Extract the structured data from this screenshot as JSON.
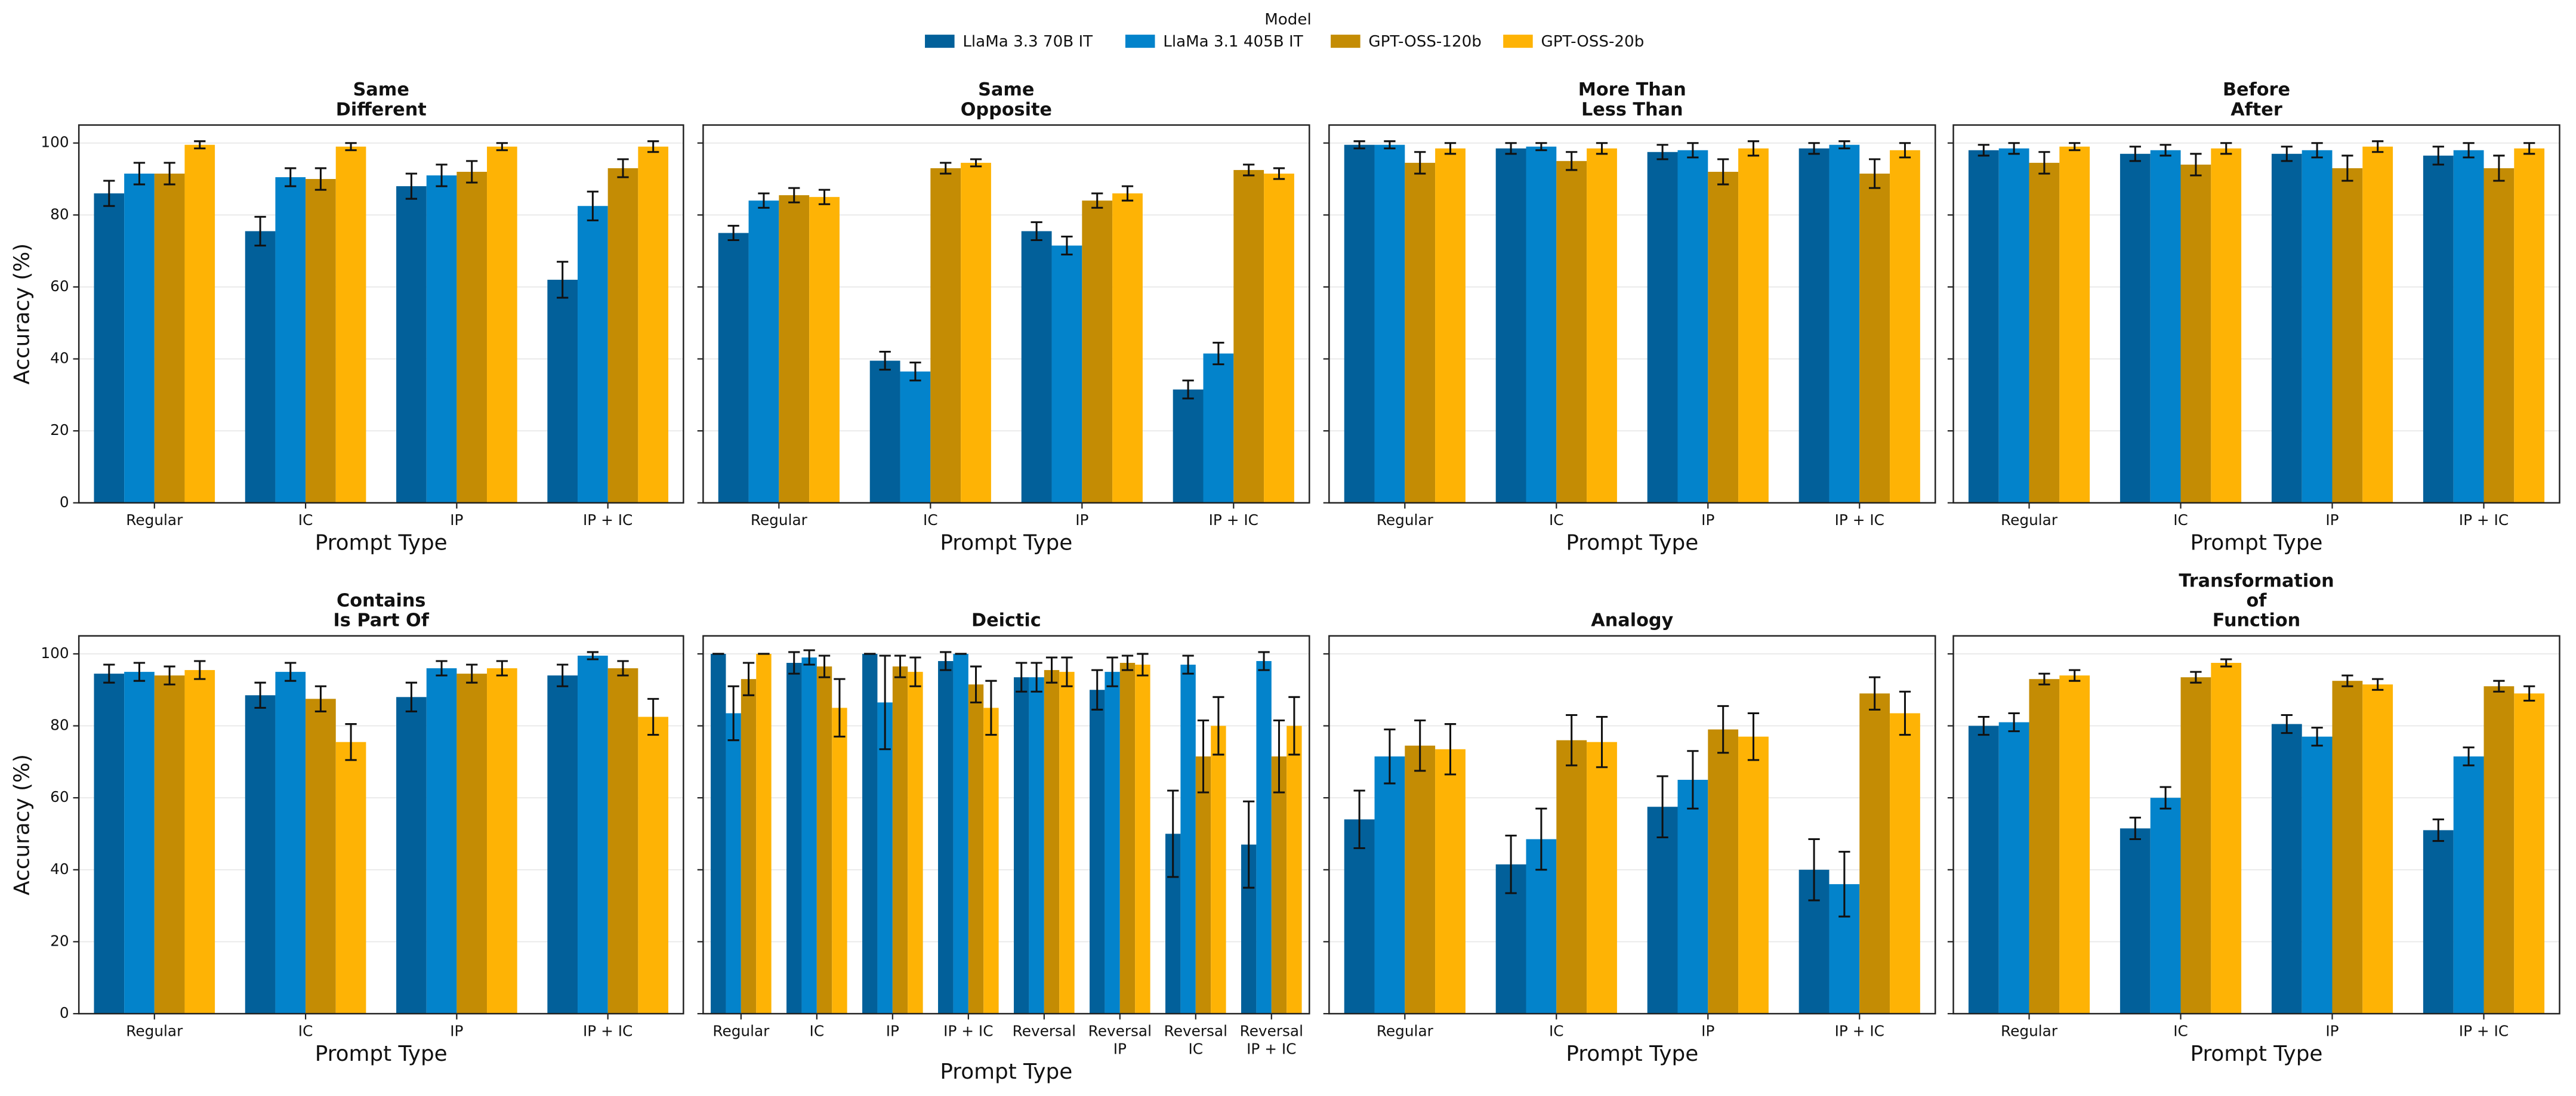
{
  "legend": {
    "title": "Model"
  },
  "chart_data": [
    {
      "type": "bar",
      "title": [
        "Same",
        "Different"
      ],
      "xlabel": "Prompt Type",
      "ylabel": "Accuracy (%)",
      "categories": [
        "Regular",
        "IC",
        "IP",
        "IP + IC"
      ],
      "ylim": [
        0,
        105
      ],
      "yticks": [
        0,
        20,
        40,
        60,
        80,
        100
      ],
      "grid": true,
      "show_ytick_labels": true,
      "series": [
        {
          "name": "LlaMa 3.3 70B IT",
          "color": "#02609a",
          "values": [
            86,
            75.5,
            88,
            62
          ],
          "errors": [
            3.5,
            4,
            3.5,
            5
          ]
        },
        {
          "name": "LlaMa 3.1 405B IT",
          "color": "#0383cb",
          "values": [
            91.5,
            90.5,
            91,
            82.5
          ],
          "errors": [
            3,
            2.5,
            3,
            4
          ]
        },
        {
          "name": "GPT-OSS-120b",
          "color": "#c48c04",
          "values": [
            91.5,
            90,
            92,
            93
          ],
          "errors": [
            3,
            3,
            3,
            2.5
          ]
        },
        {
          "name": "GPT-OSS-20b",
          "color": "#feb305",
          "values": [
            99.5,
            99,
            99,
            99
          ],
          "errors": [
            1,
            1,
            1,
            1.5
          ]
        }
      ]
    },
    {
      "type": "bar",
      "title": [
        "Same",
        "Opposite"
      ],
      "xlabel": "Prompt Type",
      "categories": [
        "Regular",
        "IC",
        "IP",
        "IP + IC"
      ],
      "ylim": [
        0,
        105
      ],
      "yticks": [
        0,
        20,
        40,
        60,
        80,
        100
      ],
      "grid": true,
      "show_ytick_labels": false,
      "series": [
        {
          "name": "LlaMa 3.3 70B IT",
          "color": "#02609a",
          "values": [
            75,
            39.5,
            75.5,
            31.5
          ],
          "errors": [
            2,
            2.5,
            2.5,
            2.5
          ]
        },
        {
          "name": "LlaMa 3.1 405B IT",
          "color": "#0383cb",
          "values": [
            84,
            36.5,
            71.5,
            41.5
          ],
          "errors": [
            2,
            2.5,
            2.5,
            3
          ]
        },
        {
          "name": "GPT-OSS-120b",
          "color": "#c48c04",
          "values": [
            85.5,
            93,
            84,
            92.5
          ],
          "errors": [
            2,
            1.5,
            2,
            1.5
          ]
        },
        {
          "name": "GPT-OSS-20b",
          "color": "#feb305",
          "values": [
            85,
            94.5,
            86,
            91.5
          ],
          "errors": [
            2,
            1,
            2,
            1.5
          ]
        }
      ]
    },
    {
      "type": "bar",
      "title": [
        "More Than",
        "Less Than"
      ],
      "xlabel": "Prompt Type",
      "categories": [
        "Regular",
        "IC",
        "IP",
        "IP + IC"
      ],
      "ylim": [
        0,
        105
      ],
      "yticks": [
        0,
        20,
        40,
        60,
        80,
        100
      ],
      "grid": true,
      "show_ytick_labels": false,
      "series": [
        {
          "name": "LlaMa 3.3 70B IT",
          "color": "#02609a",
          "values": [
            99.5,
            98.5,
            97.5,
            98.5
          ],
          "errors": [
            1,
            1.5,
            2,
            1.5
          ]
        },
        {
          "name": "LlaMa 3.1 405B IT",
          "color": "#0383cb",
          "values": [
            99.5,
            99,
            98,
            99.5
          ],
          "errors": [
            1,
            1,
            2,
            1
          ]
        },
        {
          "name": "GPT-OSS-120b",
          "color": "#c48c04",
          "values": [
            94.5,
            95,
            92,
            91.5
          ],
          "errors": [
            3,
            2.5,
            3.5,
            4
          ]
        },
        {
          "name": "GPT-OSS-20b",
          "color": "#feb305",
          "values": [
            98.5,
            98.5,
            98.5,
            98
          ],
          "errors": [
            1.5,
            1.5,
            2,
            2
          ]
        }
      ]
    },
    {
      "type": "bar",
      "title": [
        "Before",
        "After"
      ],
      "xlabel": "Prompt Type",
      "categories": [
        "Regular",
        "IC",
        "IP",
        "IP + IC"
      ],
      "ylim": [
        0,
        105
      ],
      "yticks": [
        0,
        20,
        40,
        60,
        80,
        100
      ],
      "grid": true,
      "show_ytick_labels": false,
      "series": [
        {
          "name": "LlaMa 3.3 70B IT",
          "color": "#02609a",
          "values": [
            98,
            97,
            97,
            96.5
          ],
          "errors": [
            1.5,
            2,
            2,
            2.5
          ]
        },
        {
          "name": "LlaMa 3.1 405B IT",
          "color": "#0383cb",
          "values": [
            98.5,
            98,
            98,
            98
          ],
          "errors": [
            1.5,
            1.5,
            2,
            2
          ]
        },
        {
          "name": "GPT-OSS-120b",
          "color": "#c48c04",
          "values": [
            94.5,
            94,
            93,
            93
          ],
          "errors": [
            3,
            3,
            3.5,
            3.5
          ]
        },
        {
          "name": "GPT-OSS-20b",
          "color": "#feb305",
          "values": [
            99,
            98.5,
            99,
            98.5
          ],
          "errors": [
            1,
            1.5,
            1.5,
            1.5
          ]
        }
      ]
    },
    {
      "type": "bar",
      "title": [
        "Contains",
        "Is Part Of"
      ],
      "xlabel": "Prompt Type",
      "ylabel": "Accuracy (%)",
      "categories": [
        "Regular",
        "IC",
        "IP",
        "IP + IC"
      ],
      "ylim": [
        0,
        105
      ],
      "yticks": [
        0,
        20,
        40,
        60,
        80,
        100
      ],
      "grid": true,
      "show_ytick_labels": true,
      "series": [
        {
          "name": "LlaMa 3.3 70B IT",
          "color": "#02609a",
          "values": [
            94.5,
            88.5,
            88,
            94
          ],
          "errors": [
            2.5,
            3.5,
            4,
            3
          ]
        },
        {
          "name": "LlaMa 3.1 405B IT",
          "color": "#0383cb",
          "values": [
            95,
            95,
            96,
            99.5
          ],
          "errors": [
            2.5,
            2.5,
            2,
            1
          ]
        },
        {
          "name": "GPT-OSS-120b",
          "color": "#c48c04",
          "values": [
            94,
            87.5,
            94.5,
            96
          ],
          "errors": [
            2.5,
            3.5,
            2.5,
            2
          ]
        },
        {
          "name": "GPT-OSS-20b",
          "color": "#feb305",
          "values": [
            95.5,
            75.5,
            96,
            82.5
          ],
          "errors": [
            2.5,
            5,
            2,
            5
          ]
        }
      ]
    },
    {
      "type": "bar",
      "title": [
        "Deictic"
      ],
      "xlabel": "Prompt Type",
      "categories": [
        [
          "Regular"
        ],
        [
          "IC"
        ],
        [
          "IP"
        ],
        [
          "IP + IC"
        ],
        [
          "Reversal"
        ],
        [
          "Reversal",
          "IP"
        ],
        [
          "Reversal",
          "IC"
        ],
        [
          "Reversal",
          "IP + IC"
        ]
      ],
      "ylim": [
        0,
        105
      ],
      "yticks": [
        0,
        20,
        40,
        60,
        80,
        100
      ],
      "grid": true,
      "show_ytick_labels": false,
      "series": [
        {
          "name": "LlaMa 3.3 70B IT",
          "color": "#02609a",
          "values": [
            100,
            97.5,
            100,
            98,
            93.5,
            90,
            50,
            47
          ],
          "errors": [
            0,
            3,
            0,
            2.5,
            4,
            5.5,
            12,
            12
          ]
        },
        {
          "name": "LlaMa 3.1 405B IT",
          "color": "#0383cb",
          "values": [
            83.5,
            99,
            86.5,
            100,
            93.5,
            95,
            97,
            98
          ],
          "errors": [
            7.5,
            2,
            13,
            0,
            4,
            4,
            2.5,
            2.5
          ]
        },
        {
          "name": "GPT-OSS-120b",
          "color": "#c48c04",
          "values": [
            93,
            96.5,
            96.5,
            91.5,
            95.5,
            97.5,
            71.5,
            71.5
          ],
          "errors": [
            4.5,
            3,
            3,
            5,
            3.5,
            2,
            10,
            10
          ]
        },
        {
          "name": "GPT-OSS-20b",
          "color": "#feb305",
          "values": [
            100,
            85,
            95,
            85,
            95,
            97,
            80,
            80
          ],
          "errors": [
            0,
            8,
            4,
            7.5,
            4,
            3,
            8,
            8
          ]
        }
      ]
    },
    {
      "type": "bar",
      "title": [
        "Analogy"
      ],
      "xlabel": "Prompt Type",
      "categories": [
        "Regular",
        "IC",
        "IP",
        "IP + IC"
      ],
      "ylim": [
        0,
        105
      ],
      "yticks": [
        0,
        20,
        40,
        60,
        80,
        100
      ],
      "grid": true,
      "show_ytick_labels": false,
      "series": [
        {
          "name": "LlaMa 3.3 70B IT",
          "color": "#02609a",
          "values": [
            54,
            41.5,
            57.5,
            40
          ],
          "errors": [
            8,
            8,
            8.5,
            8.5
          ]
        },
        {
          "name": "LlaMa 3.1 405B IT",
          "color": "#0383cb",
          "values": [
            71.5,
            48.5,
            65,
            36
          ],
          "errors": [
            7.5,
            8.5,
            8,
            9
          ]
        },
        {
          "name": "GPT-OSS-120b",
          "color": "#c48c04",
          "values": [
            74.5,
            76,
            79,
            89
          ],
          "errors": [
            7,
            7,
            6.5,
            4.5
          ]
        },
        {
          "name": "GPT-OSS-20b",
          "color": "#feb305",
          "values": [
            73.5,
            75.5,
            77,
            83.5
          ],
          "errors": [
            7,
            7,
            6.5,
            6
          ]
        }
      ]
    },
    {
      "type": "bar",
      "title": [
        "Transformation",
        "of",
        "Function"
      ],
      "xlabel": "Prompt Type",
      "categories": [
        "Regular",
        "IC",
        "IP",
        "IP + IC"
      ],
      "ylim": [
        0,
        105
      ],
      "yticks": [
        0,
        20,
        40,
        60,
        80,
        100
      ],
      "grid": true,
      "show_ytick_labels": false,
      "series": [
        {
          "name": "LlaMa 3.3 70B IT",
          "color": "#02609a",
          "values": [
            80,
            51.5,
            80.5,
            51
          ],
          "errors": [
            2.5,
            3,
            2.5,
            3
          ]
        },
        {
          "name": "LlaMa 3.1 405B IT",
          "color": "#0383cb",
          "values": [
            81,
            60,
            77,
            71.5
          ],
          "errors": [
            2.5,
            3,
            2.5,
            2.5
          ]
        },
        {
          "name": "GPT-OSS-120b",
          "color": "#c48c04",
          "values": [
            93,
            93.5,
            92.5,
            91
          ],
          "errors": [
            1.5,
            1.5,
            1.5,
            1.5
          ]
        },
        {
          "name": "GPT-OSS-20b",
          "color": "#feb305",
          "values": [
            94,
            97.5,
            91.5,
            89
          ],
          "errors": [
            1.5,
            1,
            1.5,
            2
          ]
        }
      ]
    }
  ]
}
